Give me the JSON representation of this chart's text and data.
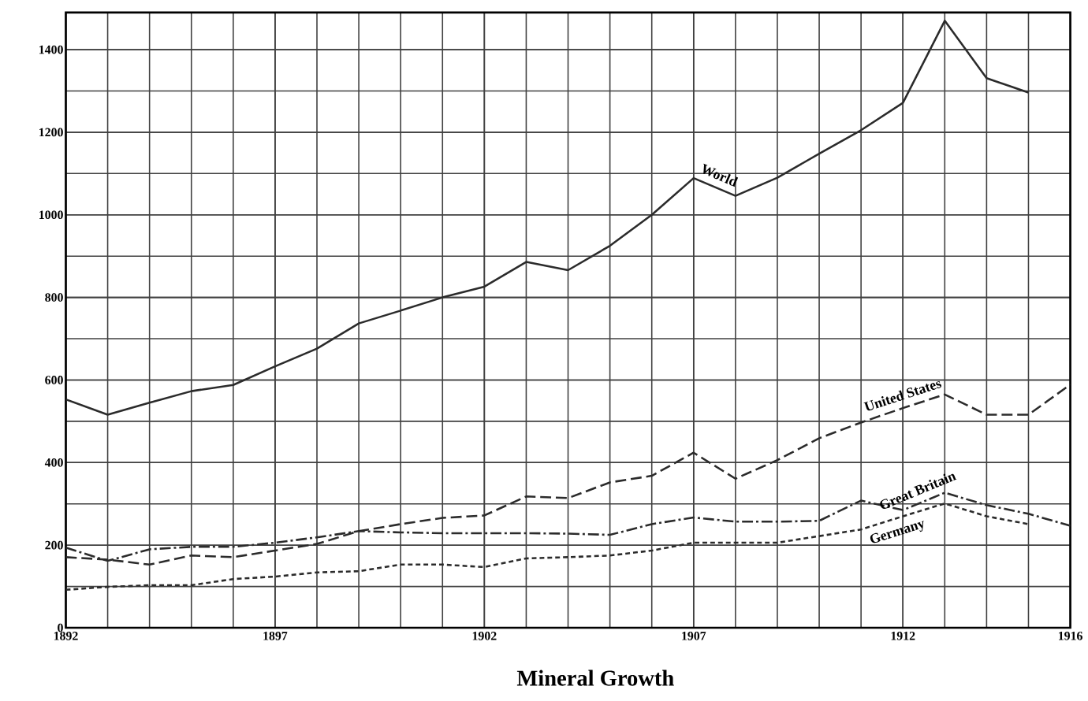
{
  "chart_data": {
    "type": "line",
    "title": "Mineral Growth",
    "x": [
      1892,
      1893,
      1894,
      1895,
      1896,
      1897,
      1898,
      1899,
      1900,
      1901,
      1902,
      1903,
      1904,
      1905,
      1906,
      1907,
      1908,
      1909,
      1910,
      1911,
      1912,
      1913,
      1914,
      1915,
      1916
    ],
    "series": [
      {
        "name": "World",
        "color": "#2b2b2b",
        "line_style": "solid",
        "values": [
          553,
          516,
          545,
          573,
          588,
          633,
          676,
          737,
          768,
          800,
          826,
          886,
          866,
          925,
          1000,
          1089,
          1046,
          1090,
          1148,
          1205,
          1271,
          1470,
          1331,
          1296,
          null
        ]
      },
      {
        "name": "United States",
        "color": "#2b2b2b",
        "line_style": "dashed",
        "values": [
          171,
          165,
          153,
          175,
          171,
          187,
          203,
          234,
          251,
          266,
          272,
          318,
          314,
          352,
          368,
          424,
          361,
          406,
          459,
          497,
          532,
          565,
          516,
          516,
          589
        ]
      },
      {
        "name": "Great Britain",
        "color": "#2b2b2b",
        "line_style": "dashdot",
        "values": [
          194,
          162,
          190,
          196,
          196,
          206,
          219,
          234,
          231,
          229,
          229,
          229,
          228,
          225,
          251,
          267,
          257,
          257,
          259,
          308,
          285,
          327,
          297,
          276,
          247
        ]
      },
      {
        "name": "Germany",
        "color": "#2b2b2b",
        "line_style": "dotted",
        "values": [
          92,
          99,
          103,
          103,
          118,
          124,
          134,
          137,
          153,
          153,
          147,
          168,
          171,
          175,
          187,
          206,
          206,
          206,
          222,
          238,
          270,
          301,
          270,
          251,
          null
        ]
      }
    ],
    "xlim": [
      1892,
      1916
    ],
    "ylim": [
      0,
      1490
    ],
    "xticks": [
      1892,
      1897,
      1902,
      1907,
      1912,
      1916
    ],
    "yticks": [
      0,
      200,
      400,
      600,
      800,
      1000,
      1200,
      1400
    ],
    "grid": true,
    "legend": false,
    "marker": "none"
  }
}
